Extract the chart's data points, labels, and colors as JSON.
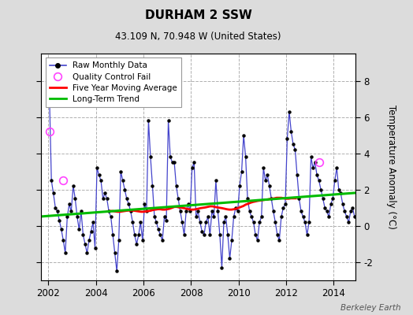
{
  "title": "DURHAM 2 SSW",
  "subtitle": "43.109 N, 70.948 W (United States)",
  "credit": "Berkeley Earth",
  "ylabel": "Temperature Anomaly (°C)",
  "ylim": [
    -3.0,
    9.5
  ],
  "yticks": [
    -2,
    0,
    2,
    4,
    6,
    8
  ],
  "xlim": [
    2001.7,
    2014.9
  ],
  "xticks": [
    2002,
    2004,
    2006,
    2008,
    2010,
    2012,
    2014
  ],
  "bg_color": "#dcdcdc",
  "plot_bg_color": "#ffffff",
  "grid_color": "#b0b0b0",
  "raw_color": "#4444cc",
  "raw_marker_color": "#000000",
  "moving_avg_color": "#ff0000",
  "trend_color": "#00bb00",
  "qc_fail_color": "#ff44ff",
  "raw_monthly": {
    "times": [
      2002.042,
      2002.125,
      2002.208,
      2002.292,
      2002.375,
      2002.458,
      2002.542,
      2002.625,
      2002.708,
      2002.792,
      2002.875,
      2002.958,
      2003.042,
      2003.125,
      2003.208,
      2003.292,
      2003.375,
      2003.458,
      2003.542,
      2003.625,
      2003.708,
      2003.792,
      2003.875,
      2003.958,
      2004.042,
      2004.125,
      2004.208,
      2004.292,
      2004.375,
      2004.458,
      2004.542,
      2004.625,
      2004.708,
      2004.792,
      2004.875,
      2004.958,
      2005.042,
      2005.125,
      2005.208,
      2005.292,
      2005.375,
      2005.458,
      2005.542,
      2005.625,
      2005.708,
      2005.792,
      2005.875,
      2005.958,
      2006.042,
      2006.125,
      2006.208,
      2006.292,
      2006.375,
      2006.458,
      2006.542,
      2006.625,
      2006.708,
      2006.792,
      2006.875,
      2006.958,
      2007.042,
      2007.125,
      2007.208,
      2007.292,
      2007.375,
      2007.458,
      2007.542,
      2007.625,
      2007.708,
      2007.792,
      2007.875,
      2007.958,
      2008.042,
      2008.125,
      2008.208,
      2008.292,
      2008.375,
      2008.458,
      2008.542,
      2008.625,
      2008.708,
      2008.792,
      2008.875,
      2008.958,
      2009.042,
      2009.125,
      2009.208,
      2009.292,
      2009.375,
      2009.458,
      2009.542,
      2009.625,
      2009.708,
      2009.792,
      2009.875,
      2009.958,
      2010.042,
      2010.125,
      2010.208,
      2010.292,
      2010.375,
      2010.458,
      2010.542,
      2010.625,
      2010.708,
      2010.792,
      2010.875,
      2010.958,
      2011.042,
      2011.125,
      2011.208,
      2011.292,
      2011.375,
      2011.458,
      2011.542,
      2011.625,
      2011.708,
      2011.792,
      2011.875,
      2011.958,
      2012.042,
      2012.125,
      2012.208,
      2012.292,
      2012.375,
      2012.458,
      2012.542,
      2012.625,
      2012.708,
      2012.792,
      2012.875,
      2012.958,
      2013.042,
      2013.125,
      2013.208,
      2013.292,
      2013.375,
      2013.458,
      2013.542,
      2013.625,
      2013.708,
      2013.792,
      2013.875,
      2013.958,
      2014.042,
      2014.125,
      2014.208,
      2014.292,
      2014.375,
      2014.458,
      2014.542,
      2014.625,
      2014.708,
      2014.792,
      2014.875
    ],
    "values": [
      7.2,
      2.5,
      1.8,
      1.0,
      0.8,
      0.3,
      -0.2,
      -0.8,
      -1.5,
      0.5,
      1.2,
      0.8,
      2.2,
      1.5,
      0.5,
      -0.2,
      0.8,
      -0.5,
      -1.0,
      -1.5,
      -0.8,
      -0.3,
      0.2,
      -1.2,
      3.2,
      2.8,
      2.5,
      1.5,
      1.8,
      1.5,
      0.8,
      0.5,
      -0.5,
      -1.5,
      -2.5,
      -0.8,
      3.0,
      2.5,
      2.0,
      1.5,
      1.2,
      0.8,
      0.2,
      -0.5,
      -1.0,
      -0.5,
      0.2,
      -0.8,
      1.2,
      0.8,
      5.8,
      3.8,
      2.2,
      0.5,
      0.2,
      -0.2,
      -0.5,
      -0.8,
      0.5,
      0.3,
      5.8,
      3.8,
      3.5,
      3.5,
      2.2,
      1.5,
      0.8,
      0.2,
      -0.5,
      0.8,
      1.2,
      0.8,
      3.2,
      3.5,
      0.5,
      0.8,
      0.2,
      -0.3,
      -0.5,
      0.2,
      0.5,
      -0.5,
      0.8,
      0.5,
      2.5,
      0.8,
      -0.5,
      -2.3,
      0.2,
      0.5,
      -0.5,
      -1.8,
      -0.8,
      0.5,
      1.0,
      0.8,
      2.2,
      3.0,
      5.0,
      3.8,
      1.5,
      0.8,
      0.5,
      0.2,
      -0.5,
      -0.8,
      0.2,
      0.5,
      3.2,
      2.5,
      2.8,
      2.2,
      1.5,
      0.8,
      0.2,
      -0.5,
      -0.8,
      0.5,
      1.0,
      1.2,
      4.8,
      6.3,
      5.2,
      4.5,
      4.2,
      2.8,
      1.5,
      0.8,
      0.5,
      0.2,
      -0.5,
      0.2,
      3.8,
      3.2,
      3.5,
      2.8,
      2.5,
      2.0,
      1.5,
      1.0,
      0.8,
      0.5,
      1.2,
      1.5,
      2.5,
      3.2,
      2.0,
      1.8,
      1.2,
      0.8,
      0.5,
      0.2,
      0.8,
      1.0,
      0.5
    ]
  },
  "qc_fail_points": [
    {
      "time": 2002.042,
      "value": 5.2
    },
    {
      "time": 2002.625,
      "value": 2.5
    },
    {
      "time": 2013.375,
      "value": 3.5
    }
  ],
  "moving_avg": {
    "times": [
      2004.5,
      2004.6,
      2004.7,
      2004.8,
      2004.9,
      2005.0,
      2005.1,
      2005.2,
      2005.3,
      2005.4,
      2005.5,
      2005.6,
      2005.7,
      2005.8,
      2005.9,
      2006.0,
      2006.1,
      2006.2,
      2006.3,
      2006.4,
      2006.5,
      2006.6,
      2006.7,
      2006.8,
      2006.9,
      2007.0,
      2007.1,
      2007.2,
      2007.3,
      2007.4,
      2007.5,
      2007.6,
      2007.7,
      2007.8,
      2007.9,
      2008.0,
      2008.1,
      2008.2,
      2008.3,
      2008.4,
      2008.5,
      2008.6,
      2008.7,
      2008.8,
      2008.9,
      2009.0,
      2009.1,
      2009.2,
      2009.3,
      2009.4,
      2009.5,
      2009.6,
      2009.7,
      2009.8,
      2009.9,
      2010.0,
      2010.1,
      2010.2,
      2010.3,
      2010.4,
      2010.5,
      2010.6,
      2010.7,
      2010.8,
      2010.9,
      2011.0,
      2011.1,
      2011.2,
      2011.3,
      2011.4,
      2011.5,
      2011.6,
      2011.7,
      2011.8,
      2011.9,
      2012.0,
      2012.1,
      2012.2,
      2012.3,
      2012.4
    ],
    "values": [
      0.8,
      0.82,
      0.82,
      0.8,
      0.78,
      0.78,
      0.8,
      0.82,
      0.84,
      0.85,
      0.85,
      0.84,
      0.82,
      0.8,
      0.78,
      0.78,
      0.8,
      0.82,
      0.84,
      0.88,
      0.9,
      0.92,
      0.92,
      0.9,
      0.9,
      0.92,
      0.95,
      1.0,
      1.05,
      1.05,
      1.02,
      1.0,
      0.98,
      0.95,
      0.92,
      0.9,
      0.9,
      0.92,
      0.95,
      0.98,
      1.0,
      1.02,
      1.05,
      1.08,
      1.08,
      1.05,
      1.02,
      1.0,
      0.98,
      0.95,
      0.92,
      0.9,
      0.9,
      0.92,
      0.95,
      1.0,
      1.05,
      1.1,
      1.18,
      1.22,
      1.28,
      1.32,
      1.35,
      1.38,
      1.4,
      1.42,
      1.44,
      1.45,
      1.48,
      1.5,
      1.52,
      1.55,
      1.55,
      1.55,
      1.52,
      1.5,
      1.5,
      1.52,
      1.52,
      1.52
    ]
  },
  "trend": {
    "times": [
      2001.7,
      2014.9
    ],
    "values": [
      0.52,
      1.82
    ]
  }
}
